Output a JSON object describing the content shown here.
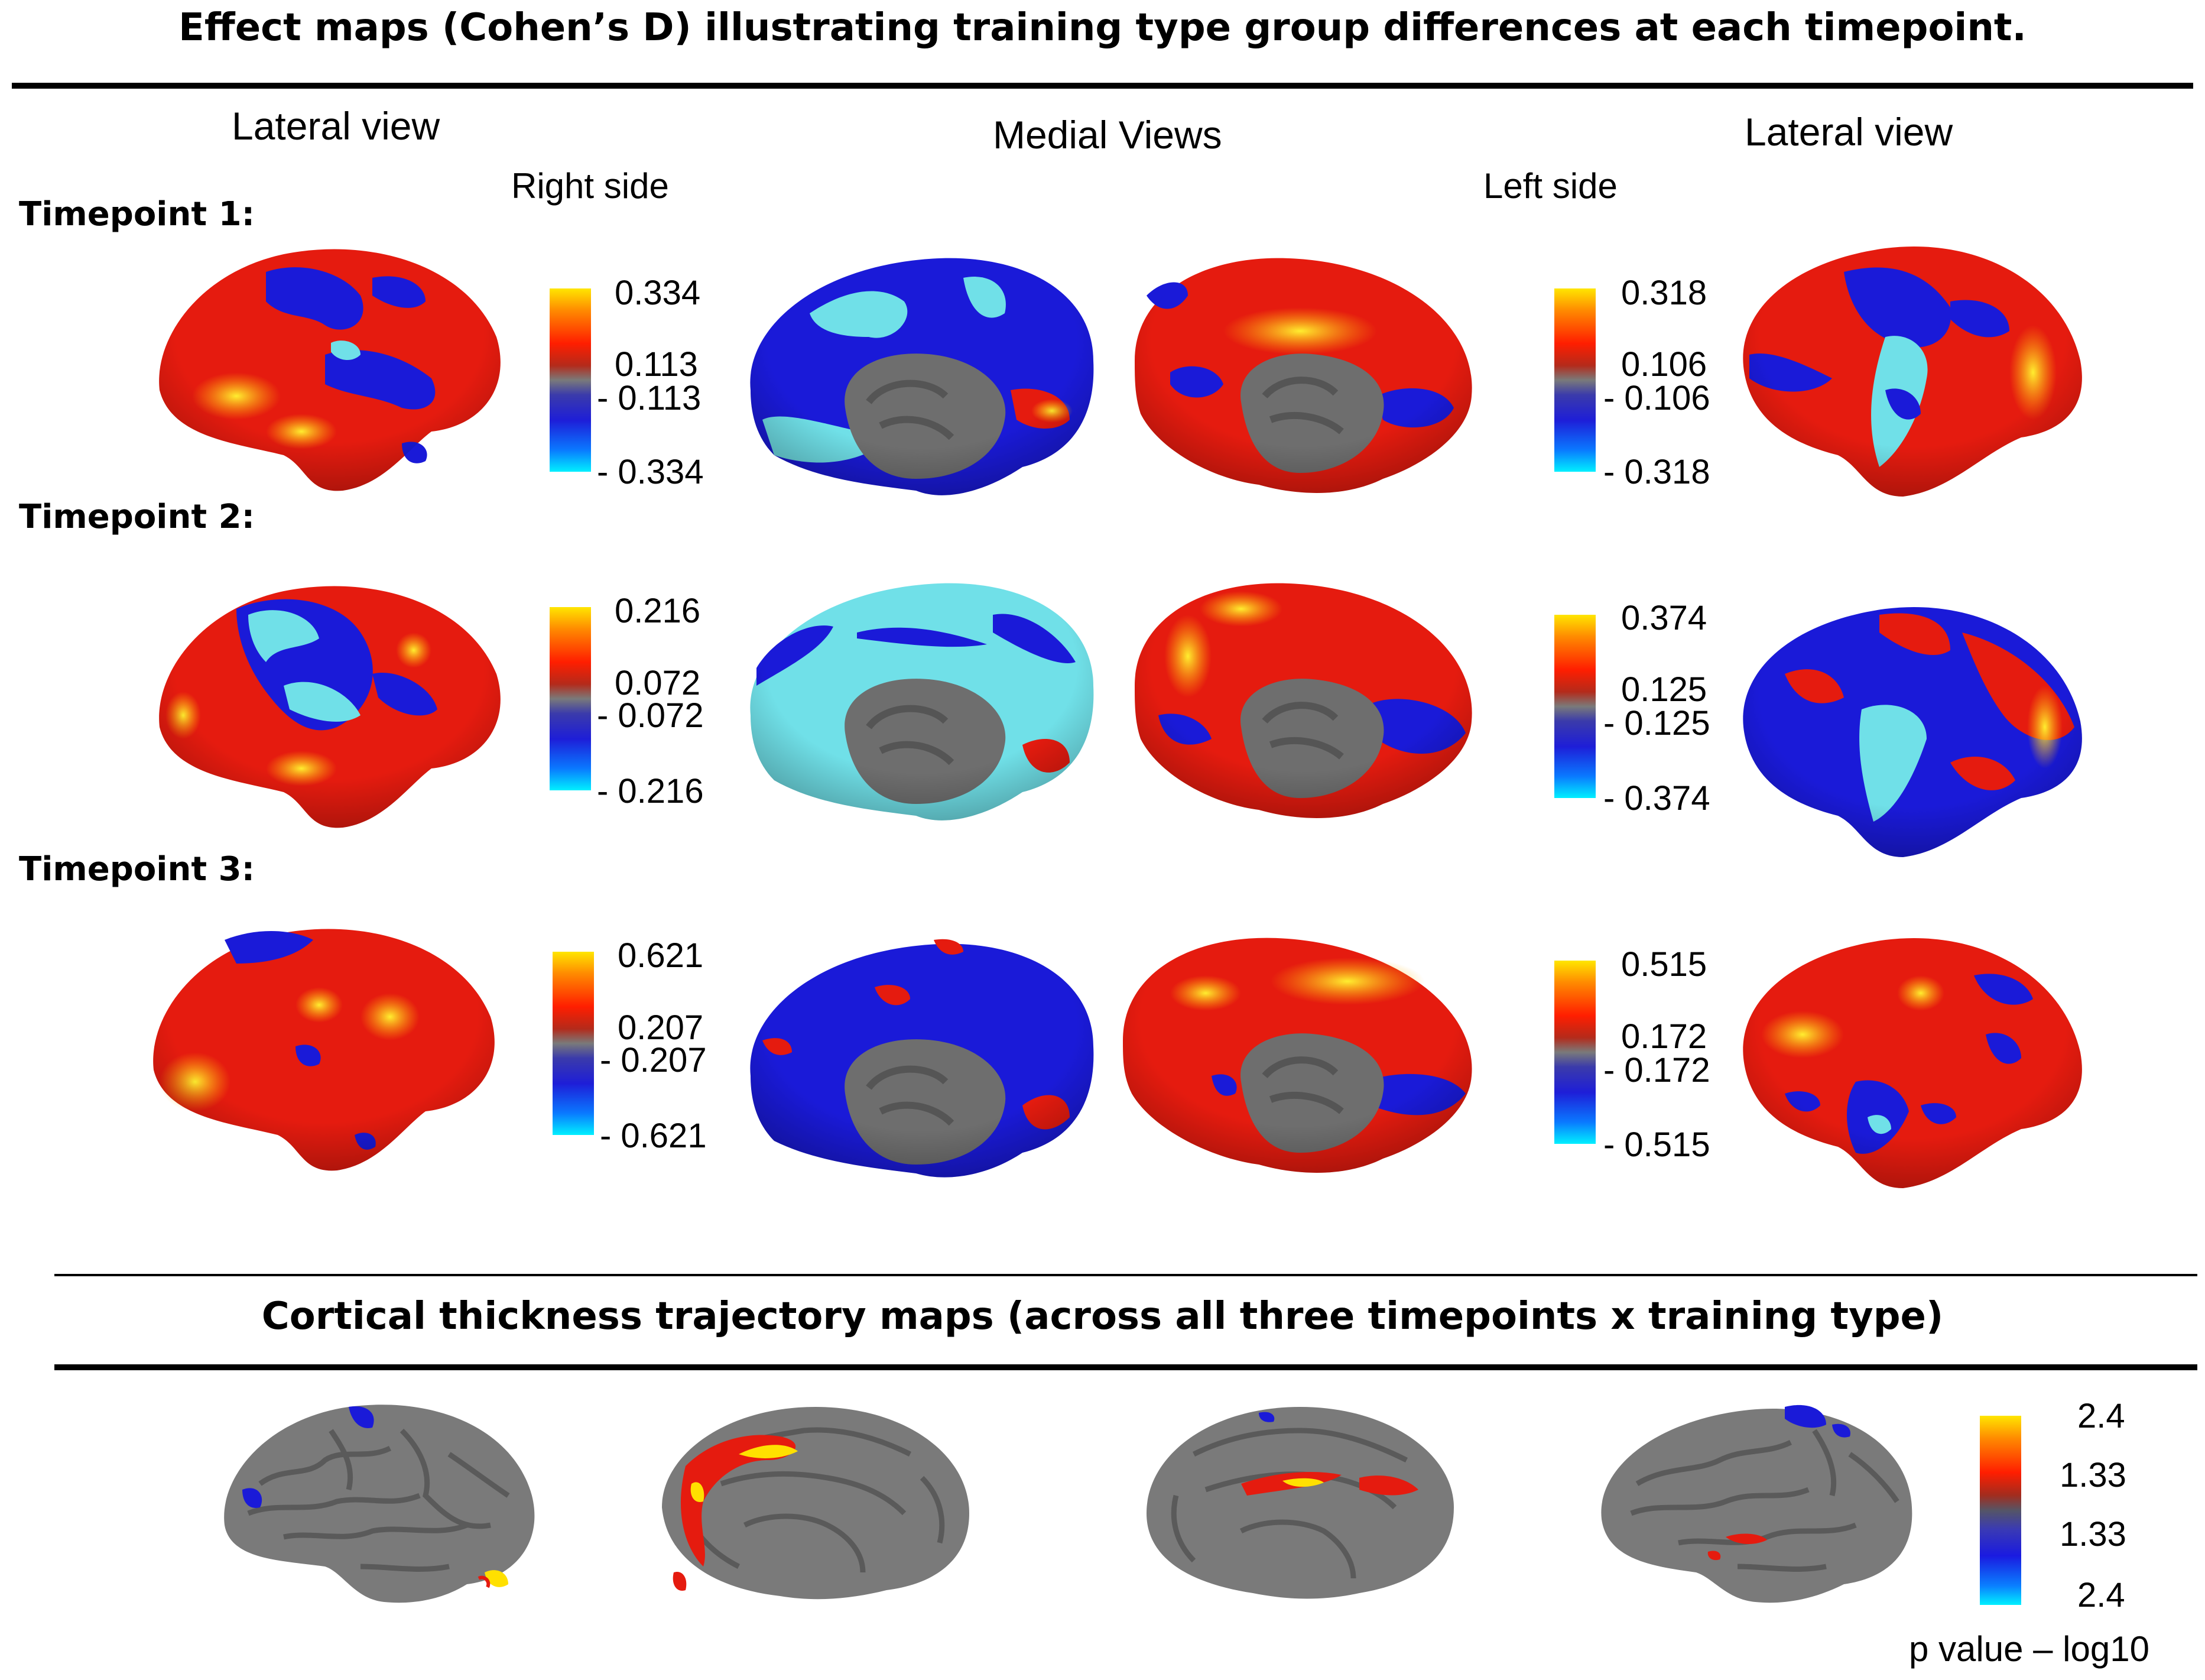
{
  "header": {
    "title": "Effect maps (Cohen’s D) illustrating training type group differences at each timepoint."
  },
  "columns": {
    "lateral_left": "Lateral view",
    "medial": "Medial Views",
    "lateral_right": "Lateral view",
    "right_side": "Right side",
    "left_side": "Left side"
  },
  "timepoints": [
    {
      "label": "Timepoint 1:",
      "right_bar": {
        "top": "0.334",
        "mid_pos": "0.113",
        "mid_neg": "- 0.113",
        "bottom": "- 0.334"
      },
      "left_bar": {
        "top": "0.318",
        "mid_pos": "0.106",
        "mid_neg": "- 0.106",
        "bottom": "- 0.318"
      }
    },
    {
      "label": "Timepoint 2:",
      "right_bar": {
        "top": "0.216",
        "mid_pos": "0.072",
        "mid_neg": "- 0.072",
        "bottom": "- 0.216"
      },
      "left_bar": {
        "top": "0.374",
        "mid_pos": "0.125",
        "mid_neg": "- 0.125",
        "bottom": "- 0.374"
      }
    },
    {
      "label": "Timepoint 3:",
      "right_bar": {
        "top": "0.621",
        "mid_pos": "0.207",
        "mid_neg": "- 0.207",
        "bottom": "- 0.621"
      },
      "left_bar": {
        "top": "0.515",
        "mid_pos": "0.172",
        "mid_neg": "- 0.172",
        "bottom": "- 0.515"
      }
    }
  ],
  "trajectory": {
    "title": "Cortical thickness trajectory maps (across all three timepoints x training type)",
    "bar": {
      "top": "2.4",
      "mid_pos": "1.33",
      "mid_neg": "1.33",
      "bottom": "2.4"
    },
    "unit_label": "p value – log10"
  },
  "colors": {
    "positive_high": "#ffe600",
    "positive": "#ff1e00",
    "neutral": "#7a7a7a",
    "negative": "#1e1ed8",
    "negative_high": "#00f0ff",
    "surface_gray": "#7d7d7d"
  }
}
